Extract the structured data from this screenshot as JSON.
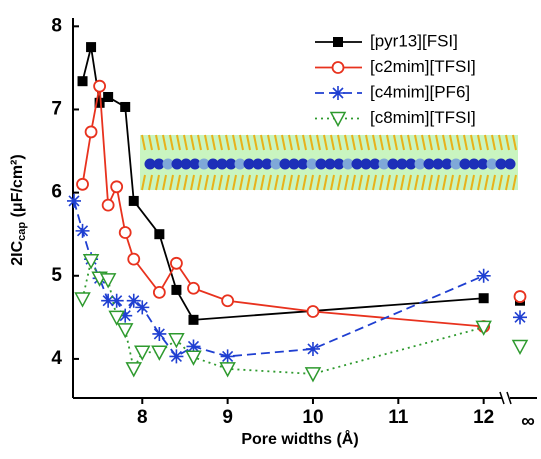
{
  "chart_data": {
    "type": "line",
    "xlabel": "Pore widths (Å)",
    "ylabel": {
      "main": "2IC",
      "sub": "cap",
      "rest": " (μF/cm²)"
    },
    "xlim": [
      7.2,
      12.25
    ],
    "ylim": [
      3.53,
      8.1
    ],
    "xticks": [
      8,
      9,
      10,
      11,
      12
    ],
    "yticks": [
      4,
      5,
      6,
      7,
      8
    ],
    "x_break_label": "∞",
    "series": [
      {
        "name": "[pyr13][FSI]",
        "color": "#000000",
        "dash": "solid",
        "marker": "square",
        "x": [
          7.3,
          7.4,
          7.5,
          7.6,
          7.8,
          7.9,
          8.2,
          8.4,
          8.6,
          12
        ],
        "values": [
          7.34,
          7.75,
          7.08,
          7.15,
          7.03,
          5.9,
          5.5,
          4.83,
          4.47,
          4.73
        ],
        "break_value": 4.7
      },
      {
        "name": "[c2mim][TFSI]",
        "color": "#e8321e",
        "dash": "solid",
        "marker": "circle",
        "x": [
          7.3,
          7.4,
          7.5,
          7.6,
          7.7,
          7.8,
          7.9,
          8.2,
          8.4,
          8.6,
          9,
          10,
          12
        ],
        "values": [
          6.1,
          6.73,
          7.28,
          5.85,
          6.07,
          5.52,
          5.2,
          4.8,
          5.15,
          4.85,
          4.7,
          4.57,
          4.39
        ],
        "break_value": 4.75
      },
      {
        "name": "[c4mim][PF6]",
        "color": "#1f3fd1",
        "dash": "dashed",
        "marker": "star",
        "x": [
          7.2,
          7.3,
          7.4,
          7.5,
          7.6,
          7.7,
          7.8,
          7.9,
          8.0,
          8.2,
          8.4,
          8.6,
          9,
          10,
          12
        ],
        "values": [
          5.9,
          5.54,
          5.2,
          4.97,
          4.7,
          4.7,
          4.52,
          4.7,
          4.62,
          4.3,
          4.03,
          4.15,
          4.03,
          4.12,
          5.0
        ],
        "break_value": 4.5
      },
      {
        "name": "[c8mim][TFSI]",
        "color": "#2e9a2e",
        "dash": "dotted",
        "marker": "triangle",
        "x": [
          7.3,
          7.4,
          7.5,
          7.6,
          7.7,
          7.8,
          7.9,
          8.0,
          8.2,
          8.4,
          8.6,
          9,
          10,
          12
        ],
        "values": [
          4.72,
          5.18,
          4.97,
          4.95,
          4.5,
          4.35,
          3.88,
          4.08,
          4.08,
          4.23,
          4.02,
          3.88,
          3.82,
          4.38
        ],
        "break_value": 4.15
      }
    ]
  }
}
